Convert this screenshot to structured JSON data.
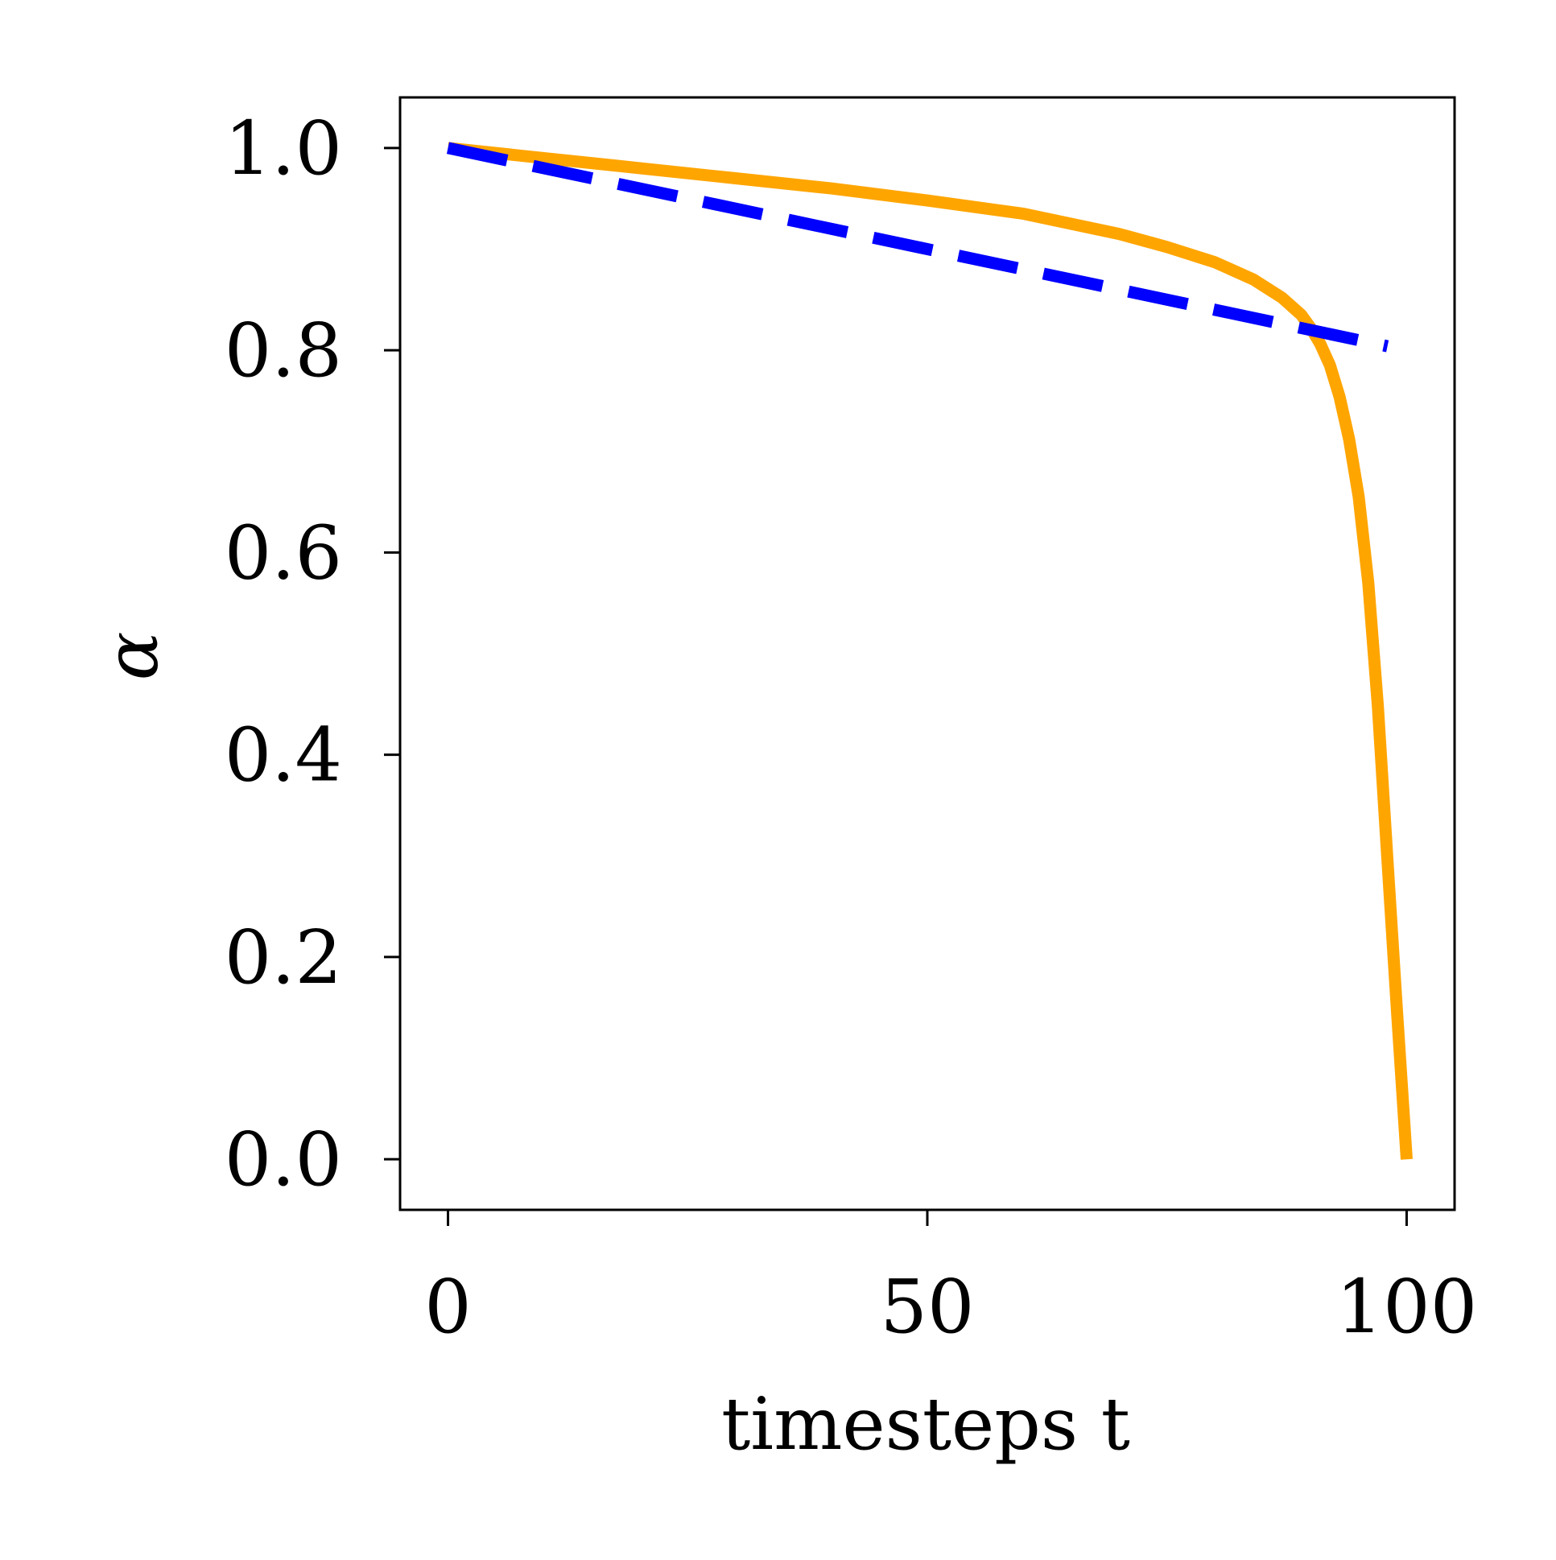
{
  "chart_data": {
    "type": "line",
    "title": "",
    "xlabel": "timesteps t",
    "ylabel": "α",
    "xlim": [
      -5,
      105
    ],
    "ylim": [
      -0.05,
      1.05
    ],
    "xticks": [
      0,
      50,
      100
    ],
    "xtick_labels": [
      "0",
      "50",
      "100"
    ],
    "yticks": [
      0.0,
      0.2,
      0.4,
      0.6,
      0.8,
      1.0
    ],
    "ytick_labels": [
      "0.0",
      "0.2",
      "0.4",
      "0.6",
      "0.8",
      "1.0"
    ],
    "grid": false,
    "legend": "none",
    "series": [
      {
        "color": "#FFA500",
        "style": "solid",
        "x": [
          0,
          10,
          20,
          30,
          40,
          50,
          60,
          70,
          75,
          80,
          84,
          87,
          89,
          90,
          91,
          92,
          93,
          94,
          95,
          96,
          97,
          98,
          99,
          100
        ],
        "y": [
          1.0,
          0.99,
          0.98,
          0.97,
          0.96,
          0.948,
          0.935,
          0.915,
          0.902,
          0.887,
          0.87,
          0.852,
          0.835,
          0.822,
          0.806,
          0.785,
          0.754,
          0.712,
          0.655,
          0.57,
          0.448,
          0.296,
          0.146,
          0.0
        ]
      },
      {
        "color": "#0000FF",
        "style": "dashed",
        "x": [
          0,
          98
        ],
        "y": [
          1.0,
          0.804
        ]
      }
    ]
  }
}
